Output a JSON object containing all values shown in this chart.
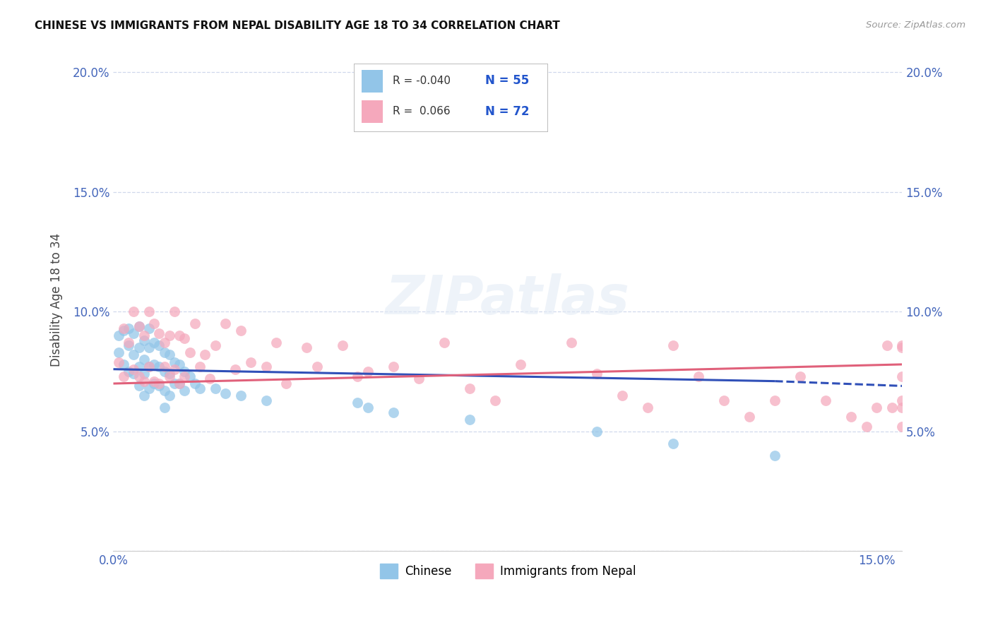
{
  "title": "CHINESE VS IMMIGRANTS FROM NEPAL DISABILITY AGE 18 TO 34 CORRELATION CHART",
  "source": "Source: ZipAtlas.com",
  "ylabel": "Disability Age 18 to 34",
  "xlim": [
    0.0,
    0.155
  ],
  "ylim": [
    0.0,
    0.21
  ],
  "xtick_positions": [
    0.0,
    0.05,
    0.1,
    0.15
  ],
  "xtick_labels": [
    "0.0%",
    "",
    "",
    "15.0%"
  ],
  "ytick_positions": [
    0.0,
    0.05,
    0.1,
    0.15,
    0.2
  ],
  "ytick_labels": [
    "",
    "5.0%",
    "10.0%",
    "15.0%",
    "20.0%"
  ],
  "color_chinese": "#92c5e8",
  "color_nepal": "#f5a8bc",
  "color_blue_line": "#3050b8",
  "color_pink_line": "#e0607a",
  "background_color": "#ffffff",
  "grid_color": "#d0d8ec",
  "watermark": "ZIPatlas",
  "legend_labels": [
    "Chinese",
    "Immigrants from Nepal"
  ],
  "r1_val": "-0.040",
  "n1_val": "55",
  "r2_val": "0.066",
  "n2_val": "72",
  "blue_line_x0": 0.0,
  "blue_line_y0": 0.076,
  "blue_line_x1": 0.13,
  "blue_line_y1": 0.071,
  "blue_line_xdash1": 0.13,
  "blue_line_ydash1": 0.071,
  "blue_line_xdash2": 0.155,
  "blue_line_ydash2": 0.069,
  "pink_line_x0": 0.0,
  "pink_line_y0": 0.07,
  "pink_line_x1": 0.155,
  "pink_line_y1": 0.078,
  "chinese_x": [
    0.001,
    0.001,
    0.002,
    0.002,
    0.003,
    0.003,
    0.003,
    0.004,
    0.004,
    0.004,
    0.005,
    0.005,
    0.005,
    0.005,
    0.006,
    0.006,
    0.006,
    0.006,
    0.007,
    0.007,
    0.007,
    0.007,
    0.008,
    0.008,
    0.008,
    0.009,
    0.009,
    0.009,
    0.01,
    0.01,
    0.01,
    0.01,
    0.011,
    0.011,
    0.011,
    0.012,
    0.012,
    0.013,
    0.013,
    0.014,
    0.014,
    0.015,
    0.016,
    0.017,
    0.02,
    0.022,
    0.025,
    0.03,
    0.048,
    0.05,
    0.055,
    0.07,
    0.095,
    0.11,
    0.13
  ],
  "chinese_y": [
    0.09,
    0.083,
    0.092,
    0.078,
    0.093,
    0.086,
    0.075,
    0.091,
    0.082,
    0.074,
    0.094,
    0.085,
    0.077,
    0.069,
    0.088,
    0.08,
    0.074,
    0.065,
    0.093,
    0.085,
    0.077,
    0.068,
    0.087,
    0.078,
    0.07,
    0.086,
    0.077,
    0.069,
    0.083,
    0.075,
    0.067,
    0.06,
    0.082,
    0.074,
    0.065,
    0.079,
    0.07,
    0.078,
    0.07,
    0.075,
    0.067,
    0.073,
    0.07,
    0.068,
    0.068,
    0.066,
    0.065,
    0.063,
    0.062,
    0.06,
    0.058,
    0.055,
    0.05,
    0.045,
    0.04
  ],
  "nepal_x": [
    0.001,
    0.002,
    0.002,
    0.003,
    0.004,
    0.004,
    0.005,
    0.005,
    0.006,
    0.006,
    0.007,
    0.007,
    0.008,
    0.008,
    0.009,
    0.009,
    0.01,
    0.01,
    0.011,
    0.011,
    0.012,
    0.012,
    0.013,
    0.013,
    0.014,
    0.014,
    0.015,
    0.016,
    0.017,
    0.018,
    0.019,
    0.02,
    0.022,
    0.024,
    0.025,
    0.027,
    0.03,
    0.032,
    0.034,
    0.038,
    0.04,
    0.045,
    0.048,
    0.05,
    0.055,
    0.06,
    0.065,
    0.07,
    0.075,
    0.08,
    0.09,
    0.095,
    0.1,
    0.105,
    0.11,
    0.115,
    0.12,
    0.125,
    0.13,
    0.135,
    0.14,
    0.145,
    0.148,
    0.15,
    0.152,
    0.153,
    0.155,
    0.155,
    0.155,
    0.155,
    0.155,
    0.155
  ],
  "nepal_y": [
    0.079,
    0.093,
    0.073,
    0.087,
    0.1,
    0.076,
    0.094,
    0.073,
    0.09,
    0.071,
    0.1,
    0.077,
    0.095,
    0.071,
    0.091,
    0.07,
    0.087,
    0.077,
    0.09,
    0.073,
    0.1,
    0.076,
    0.09,
    0.07,
    0.089,
    0.073,
    0.083,
    0.095,
    0.077,
    0.082,
    0.072,
    0.086,
    0.095,
    0.076,
    0.092,
    0.079,
    0.077,
    0.087,
    0.07,
    0.085,
    0.077,
    0.086,
    0.073,
    0.075,
    0.077,
    0.072,
    0.087,
    0.068,
    0.063,
    0.078,
    0.087,
    0.074,
    0.065,
    0.06,
    0.086,
    0.073,
    0.063,
    0.056,
    0.063,
    0.073,
    0.063,
    0.056,
    0.052,
    0.06,
    0.086,
    0.06,
    0.086,
    0.073,
    0.06,
    0.063,
    0.052,
    0.085
  ]
}
